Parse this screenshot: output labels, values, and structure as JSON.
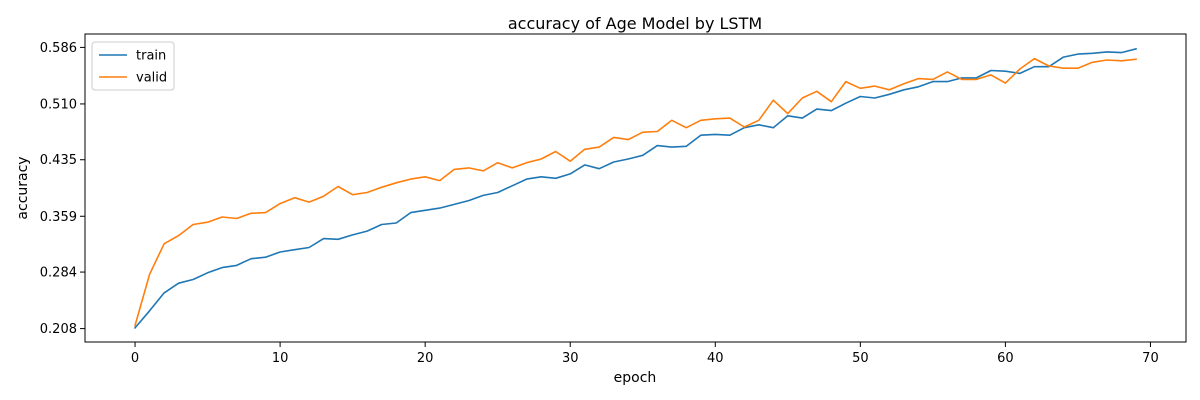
{
  "chart_data": {
    "type": "line",
    "title": "accuracy of Age Model by LSTM",
    "xlabel": "epoch",
    "ylabel": "accuracy",
    "xlim": [
      -3.45,
      72.45
    ],
    "ylim": [
      0.19,
      0.604
    ],
    "x_ticks": [
      0,
      10,
      20,
      30,
      40,
      50,
      60,
      70
    ],
    "y_ticks": [
      0.208,
      0.284,
      0.359,
      0.435,
      0.51,
      0.586
    ],
    "y_tick_labels": [
      "0.208",
      "0.284",
      "0.359",
      "0.435",
      "0.510",
      "0.586"
    ],
    "grid": false,
    "legend_position": "top-left",
    "x": [
      0,
      1,
      2,
      3,
      4,
      5,
      6,
      7,
      8,
      9,
      10,
      11,
      12,
      13,
      14,
      15,
      16,
      17,
      18,
      19,
      20,
      21,
      22,
      23,
      24,
      25,
      26,
      27,
      28,
      29,
      30,
      31,
      32,
      33,
      34,
      35,
      36,
      37,
      38,
      39,
      40,
      41,
      42,
      43,
      44,
      45,
      46,
      47,
      48,
      49,
      50,
      51,
      52,
      53,
      54,
      55,
      56,
      57,
      58,
      59,
      60,
      61,
      62,
      63,
      64,
      65,
      66,
      67,
      68,
      69
    ],
    "series": [
      {
        "name": "train",
        "color": "#1f77b4",
        "values": [
          0.209,
          0.232,
          0.256,
          0.269,
          0.274,
          0.283,
          0.29,
          0.293,
          0.302,
          0.304,
          0.311,
          0.314,
          0.317,
          0.329,
          0.328,
          0.334,
          0.339,
          0.348,
          0.35,
          0.364,
          0.367,
          0.37,
          0.375,
          0.38,
          0.387,
          0.391,
          0.4,
          0.409,
          0.412,
          0.41,
          0.416,
          0.428,
          0.423,
          0.432,
          0.436,
          0.441,
          0.454,
          0.452,
          0.453,
          0.468,
          0.469,
          0.468,
          0.478,
          0.482,
          0.478,
          0.494,
          0.491,
          0.503,
          0.501,
          0.511,
          0.52,
          0.518,
          0.523,
          0.529,
          0.533,
          0.54,
          0.54,
          0.545,
          0.545,
          0.555,
          0.554,
          0.551,
          0.56,
          0.56,
          0.573,
          0.577,
          0.578,
          0.58,
          0.579,
          0.584
        ]
      },
      {
        "name": "valid",
        "color": "#ff7f0e",
        "values": [
          0.212,
          0.281,
          0.322,
          0.333,
          0.348,
          0.351,
          0.358,
          0.356,
          0.363,
          0.364,
          0.376,
          0.384,
          0.378,
          0.386,
          0.399,
          0.388,
          0.391,
          0.398,
          0.404,
          0.409,
          0.412,
          0.407,
          0.422,
          0.424,
          0.42,
          0.431,
          0.424,
          0.431,
          0.436,
          0.446,
          0.433,
          0.449,
          0.452,
          0.465,
          0.462,
          0.472,
          0.473,
          0.488,
          0.478,
          0.488,
          0.49,
          0.491,
          0.479,
          0.488,
          0.515,
          0.497,
          0.518,
          0.527,
          0.513,
          0.54,
          0.531,
          0.534,
          0.529,
          0.537,
          0.544,
          0.543,
          0.553,
          0.543,
          0.543,
          0.549,
          0.538,
          0.557,
          0.571,
          0.561,
          0.558,
          0.558,
          0.566,
          0.569,
          0.568,
          0.57
        ]
      }
    ]
  }
}
